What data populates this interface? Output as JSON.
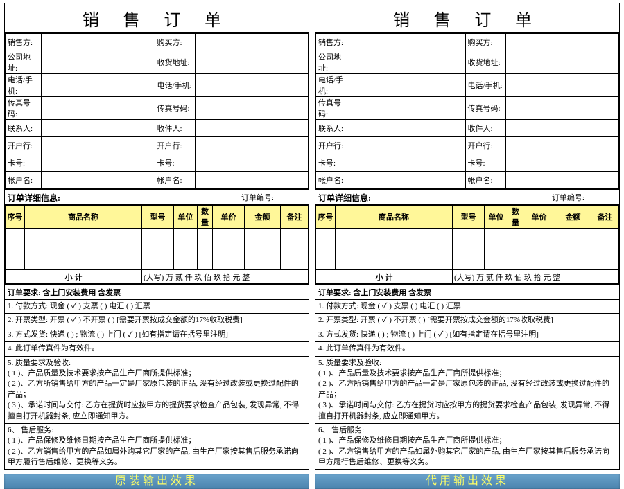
{
  "title": "销 售 订 单",
  "info_left": [
    "销售方:",
    "公司地址:",
    "电话/手机:",
    "传真号码:",
    "联系人:",
    "开户行:",
    "卡号:",
    "帐户名:"
  ],
  "info_right": [
    "购买方:",
    "收货地址:",
    "电话/手机:",
    "传真号码:",
    "收件人:",
    "开户行:",
    "卡号:",
    "帐户名:"
  ],
  "detail_title": "订单详细信息:",
  "order_no_label": "订单编号:",
  "cols": [
    "序号",
    "商品名称",
    "型号",
    "单位",
    "数量",
    "单价",
    "金额",
    "备注"
  ],
  "subtotal_label": "小  计",
  "amount_words": "(大写) 万    贰 仟 玖 佰 玖 拾 元 整",
  "req_head": "订单要求: 含上门安装费用  含发票",
  "line1": "1. 付款方式: 现金 (    ✓  )    支票 (        )    电汇 (        )    汇票",
  "line2": "2. 开票类型:  开票 (    ✓  )  不开票 (        )    [需要开票按成交金额的17%收取税费]",
  "line3": "3. 方式发货: 快递 (        ) ; 物流 (        )    上门 (  ✓  )    [如有指定请在括号里注明]",
  "line4": "4. 此订单传真件为有效件。",
  "line5": "5. 质量要求及验收:\n( 1 )、产品质量及技术要求按产品生产厂商所提供标准；\n( 2 )、乙方所销售给甲方的产品一定是厂家原包装的正品, 没有经过改装或更换过配件的产品；\n( 3 )、承诺时间与交付: 乙方在提货时应按甲方的提货要求检查产品包装, 发现异常, 不得擅自打开机器封条, 应立即通知甲方。",
  "line6": "6、 售后服务:\n( 1 )、产品保修及维修日期按产品生产厂商所提供标准；\n( 2 )、乙方销售给甲方的产品如属外购其它厂家的产品, 由生产厂家按其售后服务承诺向甲方履行售后维修、更换等义务。",
  "caption_left": "原装输出效果",
  "caption_right": "代用输出效果",
  "colors": {
    "header_bg": "#fff799",
    "caption_bg1": "#6aa3cc",
    "caption_bg2": "#4a83ad",
    "caption_fg": "#ffff66"
  }
}
